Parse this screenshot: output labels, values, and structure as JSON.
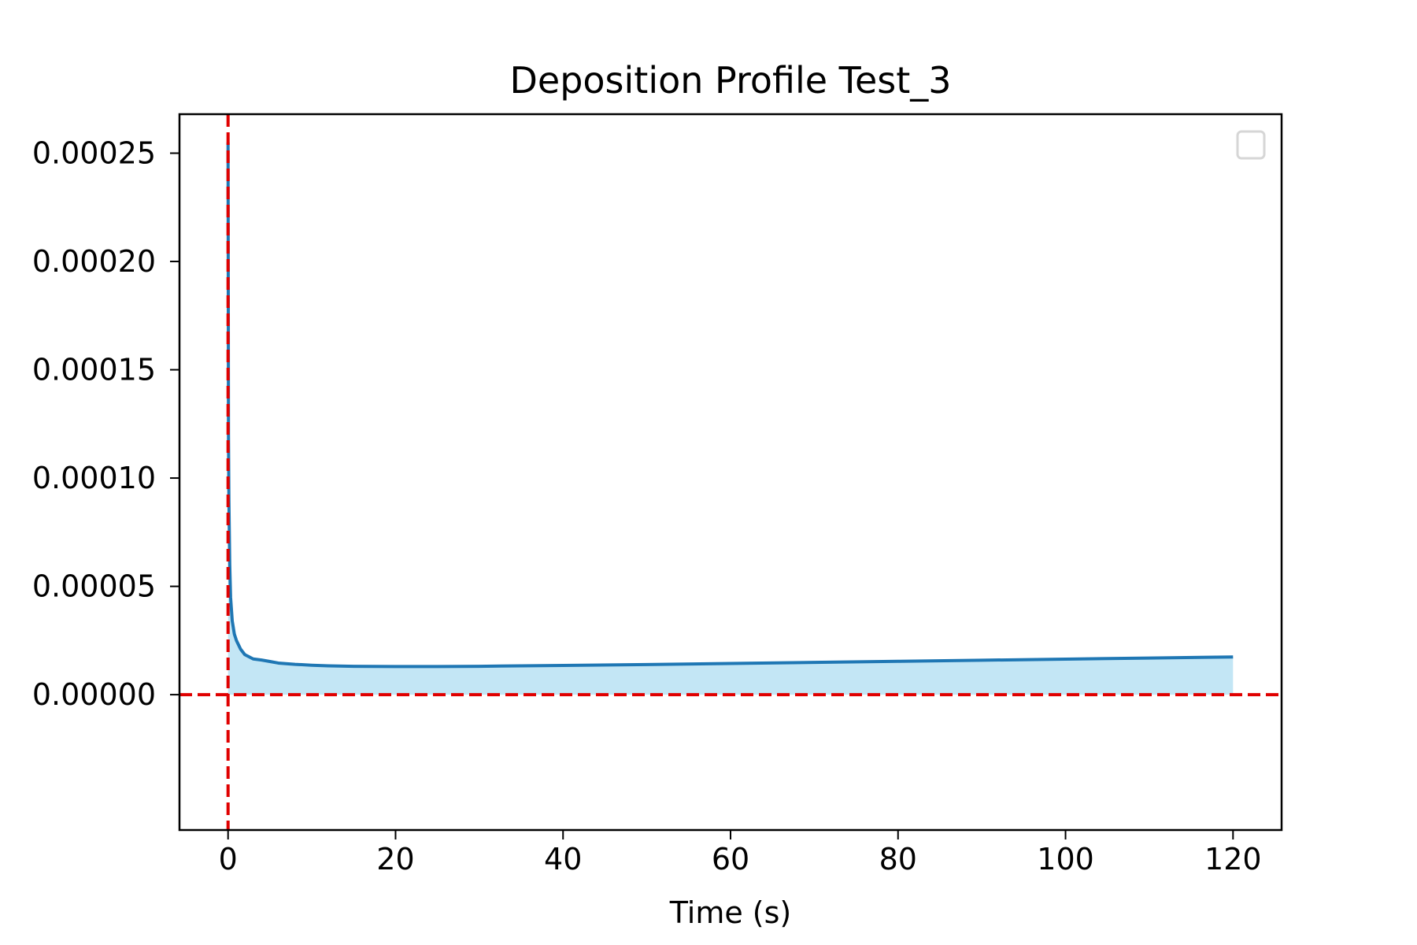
{
  "chart_data": {
    "type": "area",
    "title": "Deposition Profile Test_3",
    "xlabel": "Time (s)",
    "ylabel": "",
    "xlim": [
      -5.8,
      125.8
    ],
    "ylim": [
      -6.25e-05,
      0.000268
    ],
    "x_ticks": [
      0,
      20,
      40,
      60,
      80,
      100,
      120
    ],
    "x_tick_labels": [
      "0",
      "20",
      "40",
      "60",
      "80",
      "100",
      "120"
    ],
    "y_ticks": [
      0,
      5e-05,
      0.0001,
      0.00015,
      0.0002,
      0.00025
    ],
    "y_tick_labels": [
      "0.00000",
      "0.00005",
      "0.00010",
      "0.00015",
      "0.00020",
      "0.00025"
    ],
    "grid": false,
    "legend": {
      "placement": "top-right",
      "entries": []
    },
    "reference_lines": [
      {
        "orientation": "vertical",
        "value": 0,
        "style": "dashed",
        "color": "#e00000"
      },
      {
        "orientation": "horizontal",
        "value": 0,
        "style": "dashed",
        "color": "#e00000"
      }
    ],
    "series": [
      {
        "color": "#1f77b4",
        "fill_color": "#87ceeb",
        "x": [
          0,
          0.05,
          0.1,
          0.2,
          0.3,
          0.5,
          0.75,
          1,
          1.5,
          2,
          3,
          4,
          5,
          6,
          8,
          10,
          12,
          15,
          20,
          25,
          30,
          40,
          50,
          60,
          70,
          80,
          90,
          100,
          110,
          120
        ],
        "y": [
          0.000255,
          0.00012,
          9e-05,
          6e-05,
          4.5e-05,
          3.4e-05,
          2.8e-05,
          2.5e-05,
          2.1e-05,
          1.85e-05,
          1.65e-05,
          1.6e-05,
          1.53e-05,
          1.46e-05,
          1.4e-05,
          1.36e-05,
          1.33e-05,
          1.31e-05,
          1.3e-05,
          1.3e-05,
          1.31e-05,
          1.35e-05,
          1.39e-05,
          1.44e-05,
          1.49e-05,
          1.54e-05,
          1.59e-05,
          1.64e-05,
          1.69e-05,
          1.74e-05
        ]
      }
    ]
  }
}
